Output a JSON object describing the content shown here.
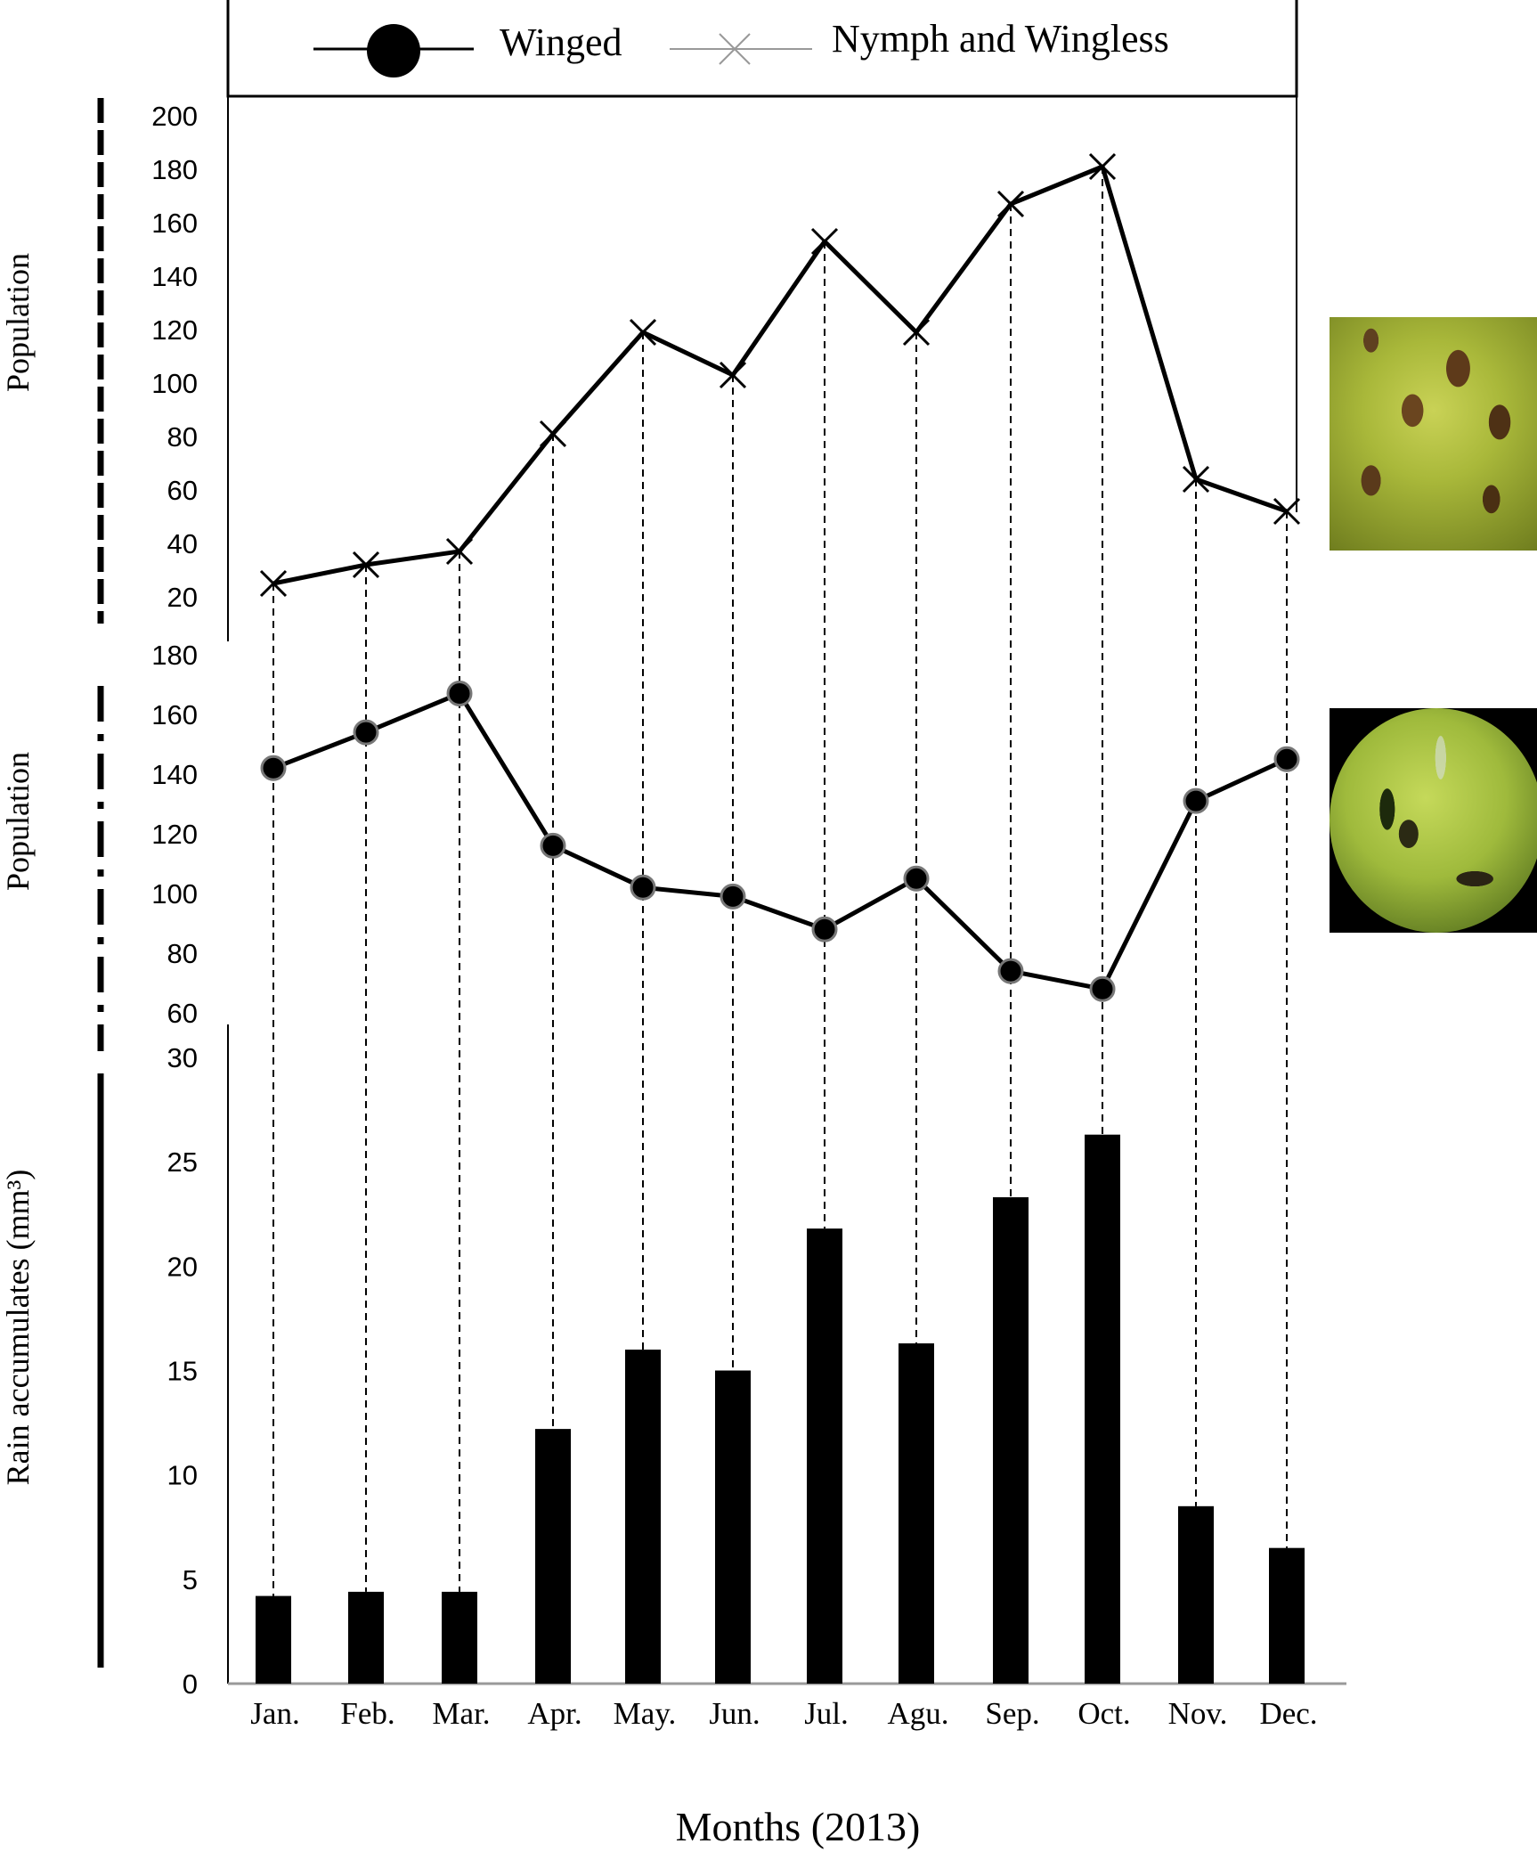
{
  "chart_data": [
    {
      "type": "line",
      "ylabel": "Population",
      "ylim": [
        20,
        200
      ],
      "yticks": [
        20,
        40,
        60,
        80,
        100,
        120,
        140,
        160,
        180,
        200
      ],
      "categories": [
        "Jan.",
        "Feb.",
        "Mar.",
        "Apr.",
        "May.",
        "Jun.",
        "Jul.",
        "Agu.",
        "Sep.",
        "Oct.",
        "Nov.",
        "Dec."
      ],
      "series": [
        {
          "name": "Nymph and Wingless",
          "marker": "x",
          "values": [
            25,
            32,
            37,
            81,
            119,
            103,
            153,
            119,
            167,
            181,
            64,
            52
          ]
        }
      ],
      "legend": "top",
      "grid": false
    },
    {
      "type": "line",
      "ylabel": "Population",
      "ylim": [
        60,
        180
      ],
      "yticks": [
        60,
        80,
        100,
        120,
        140,
        160,
        180
      ],
      "categories": [
        "Jan.",
        "Feb.",
        "Mar.",
        "Apr.",
        "May.",
        "Jun.",
        "Jul.",
        "Agu.",
        "Sep.",
        "Oct.",
        "Nov.",
        "Dec."
      ],
      "series": [
        {
          "name": "Winged",
          "marker": "circle",
          "values": [
            142,
            154,
            167,
            116,
            102,
            99,
            88,
            105,
            74,
            68,
            131,
            145
          ]
        }
      ],
      "grid": false
    },
    {
      "type": "bar",
      "ylabel": "Rain accumulates (mm³)",
      "xlabel": "Months (2013)",
      "ylim": [
        0,
        30
      ],
      "yticks": [
        0,
        5,
        10,
        15,
        20,
        25,
        30
      ],
      "categories": [
        "Jan.",
        "Feb.",
        "Mar.",
        "Apr.",
        "May.",
        "Jun.",
        "Jul.",
        "Agu.",
        "Sep.",
        "Oct.",
        "Nov.",
        "Dec."
      ],
      "values": [
        4.2,
        4.4,
        4.4,
        12.2,
        16.0,
        15.0,
        21.8,
        16.3,
        23.3,
        26.3,
        8.5,
        6.5
      ],
      "grid": false
    }
  ],
  "legend": {
    "winged": "Winged",
    "nymph": "Nymph and Wingless"
  },
  "photos": [
    {
      "name": "nymph-wingless-aphid-photo",
      "colors": [
        "#a9b83a",
        "#6f7d1e",
        "#5a3c1c"
      ]
    },
    {
      "name": "winged-aphid-photo",
      "colors": [
        "#9fba3c",
        "#2b4511",
        "#000000"
      ]
    }
  ],
  "colors": {
    "ink": "#000000",
    "background": "#ffffff"
  }
}
